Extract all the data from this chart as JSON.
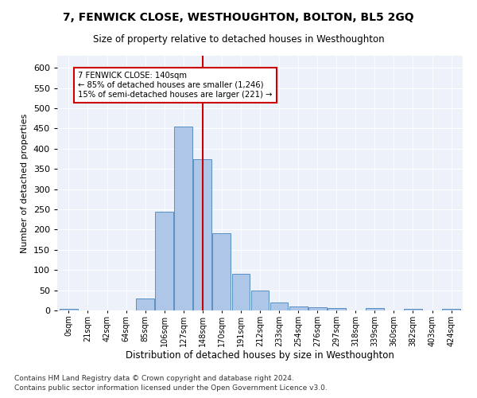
{
  "title": "7, FENWICK CLOSE, WESTHOUGHTON, BOLTON, BL5 2GQ",
  "subtitle": "Size of property relative to detached houses in Westhoughton",
  "xlabel": "Distribution of detached houses by size in Westhoughton",
  "ylabel": "Number of detached properties",
  "footnote1": "Contains HM Land Registry data © Crown copyright and database right 2024.",
  "footnote2": "Contains public sector information licensed under the Open Government Licence v3.0.",
  "annotation_line1": "7 FENWICK CLOSE: 140sqm",
  "annotation_line2": "← 85% of detached houses are smaller (1,246)",
  "annotation_line3": "15% of semi-detached houses are larger (221) →",
  "bin_labels": [
    "0sqm",
    "21sqm",
    "42sqm",
    "64sqm",
    "85sqm",
    "106sqm",
    "127sqm",
    "148sqm",
    "170sqm",
    "191sqm",
    "212sqm",
    "233sqm",
    "254sqm",
    "276sqm",
    "297sqm",
    "318sqm",
    "339sqm",
    "360sqm",
    "382sqm",
    "403sqm",
    "424sqm"
  ],
  "bar_values": [
    3,
    0,
    0,
    0,
    30,
    245,
    455,
    375,
    190,
    90,
    50,
    20,
    10,
    7,
    5,
    0,
    5,
    0,
    4,
    0,
    3
  ],
  "bar_color": "#aec6e8",
  "bar_edge_color": "#5a8fc0",
  "red_line_x": 7.0,
  "background_color": "#edf2fa",
  "annotation_box_color": "#ffffff",
  "annotation_box_edge": "#cc0000",
  "ylim": [
    0,
    630
  ],
  "yticks": [
    0,
    50,
    100,
    150,
    200,
    250,
    300,
    350,
    400,
    450,
    500,
    550,
    600
  ]
}
